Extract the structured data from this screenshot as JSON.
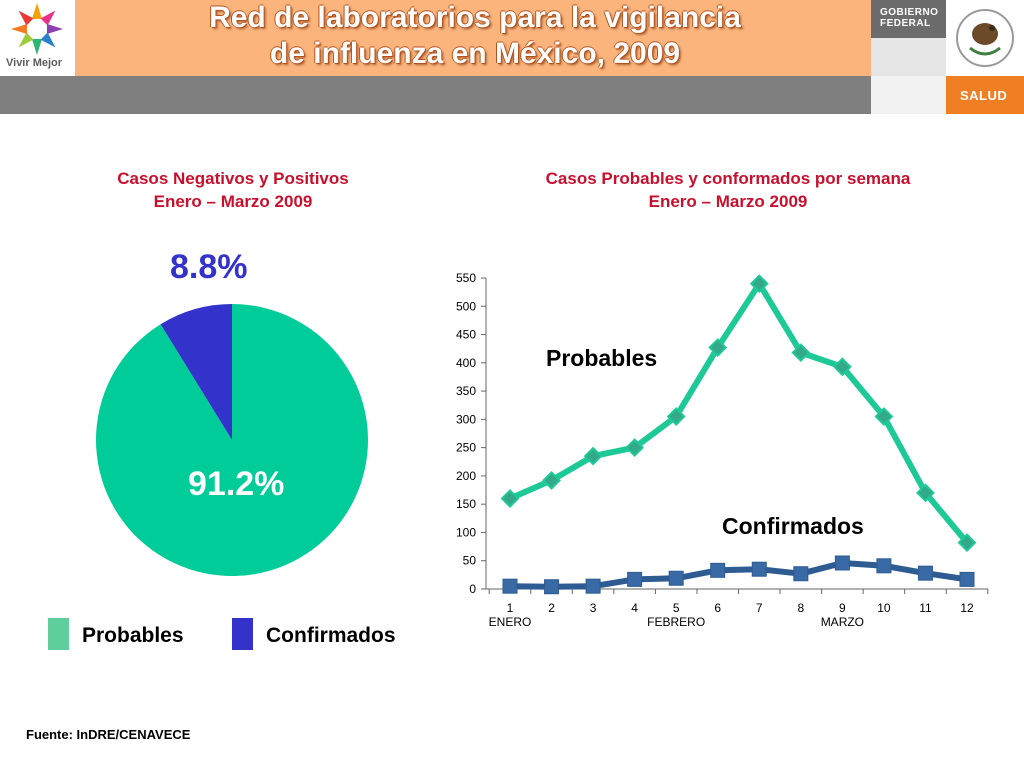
{
  "header": {
    "title_line1": "Red de laboratorios para la vigilancia",
    "title_line2": "de influenza en México, 2009",
    "logo_label": "Vivir Mejor",
    "gobierno_line1": "GOBIERNO",
    "gobierno_line2": "FEDERAL",
    "salud": "SALUD",
    "colors": {
      "band": "#fbb47c",
      "gray": "#7f7f7f",
      "salud": "#f07f23"
    }
  },
  "pie_title": {
    "line1": "Casos Negativos y Positivos",
    "line2": "Enero – Marzo 2009"
  },
  "line_title": {
    "line1": "Casos Probables y conformados por semana",
    "line2": "Enero – Marzo 2009"
  },
  "legend": {
    "probables": "Probables",
    "confirmados": "Confirmados"
  },
  "series_labels": {
    "probables": "Probables",
    "confirmados": "Confirmados"
  },
  "source": "Fuente: InDRE/CENAVECE",
  "chart_data": [
    {
      "type": "pie",
      "labels": [
        "Probables",
        "Confirmados"
      ],
      "values": [
        91.2,
        8.8
      ],
      "value_labels": [
        "91.2%",
        "8.8%"
      ],
      "colors": [
        "#00cc99",
        "#3333cc"
      ]
    },
    {
      "type": "line",
      "x": [
        "1",
        "2",
        "3",
        "4",
        "5",
        "6",
        "7",
        "8",
        "9",
        "10",
        "11",
        "12"
      ],
      "month_labels": [
        {
          "label": "ENERO",
          "week": 1
        },
        {
          "label": "FEBRERO",
          "week": 5
        },
        {
          "label": "MARZO",
          "week": 9
        }
      ],
      "series": [
        {
          "name": "Probables",
          "color": "#1ec998",
          "marker": "#33a98a",
          "values": [
            160,
            192,
            235,
            250,
            305,
            427,
            540,
            418,
            393,
            305,
            170,
            82
          ]
        },
        {
          "name": "Confirmados",
          "color": "#2e5c92",
          "marker": "#3a6aa5",
          "values": [
            5,
            4,
            5,
            17,
            19,
            33,
            35,
            27,
            46,
            41,
            28,
            17
          ]
        }
      ],
      "ylim": [
        0,
        550
      ],
      "yticks": [
        0,
        50,
        100,
        150,
        200,
        250,
        300,
        350,
        400,
        450,
        500,
        550
      ]
    }
  ]
}
